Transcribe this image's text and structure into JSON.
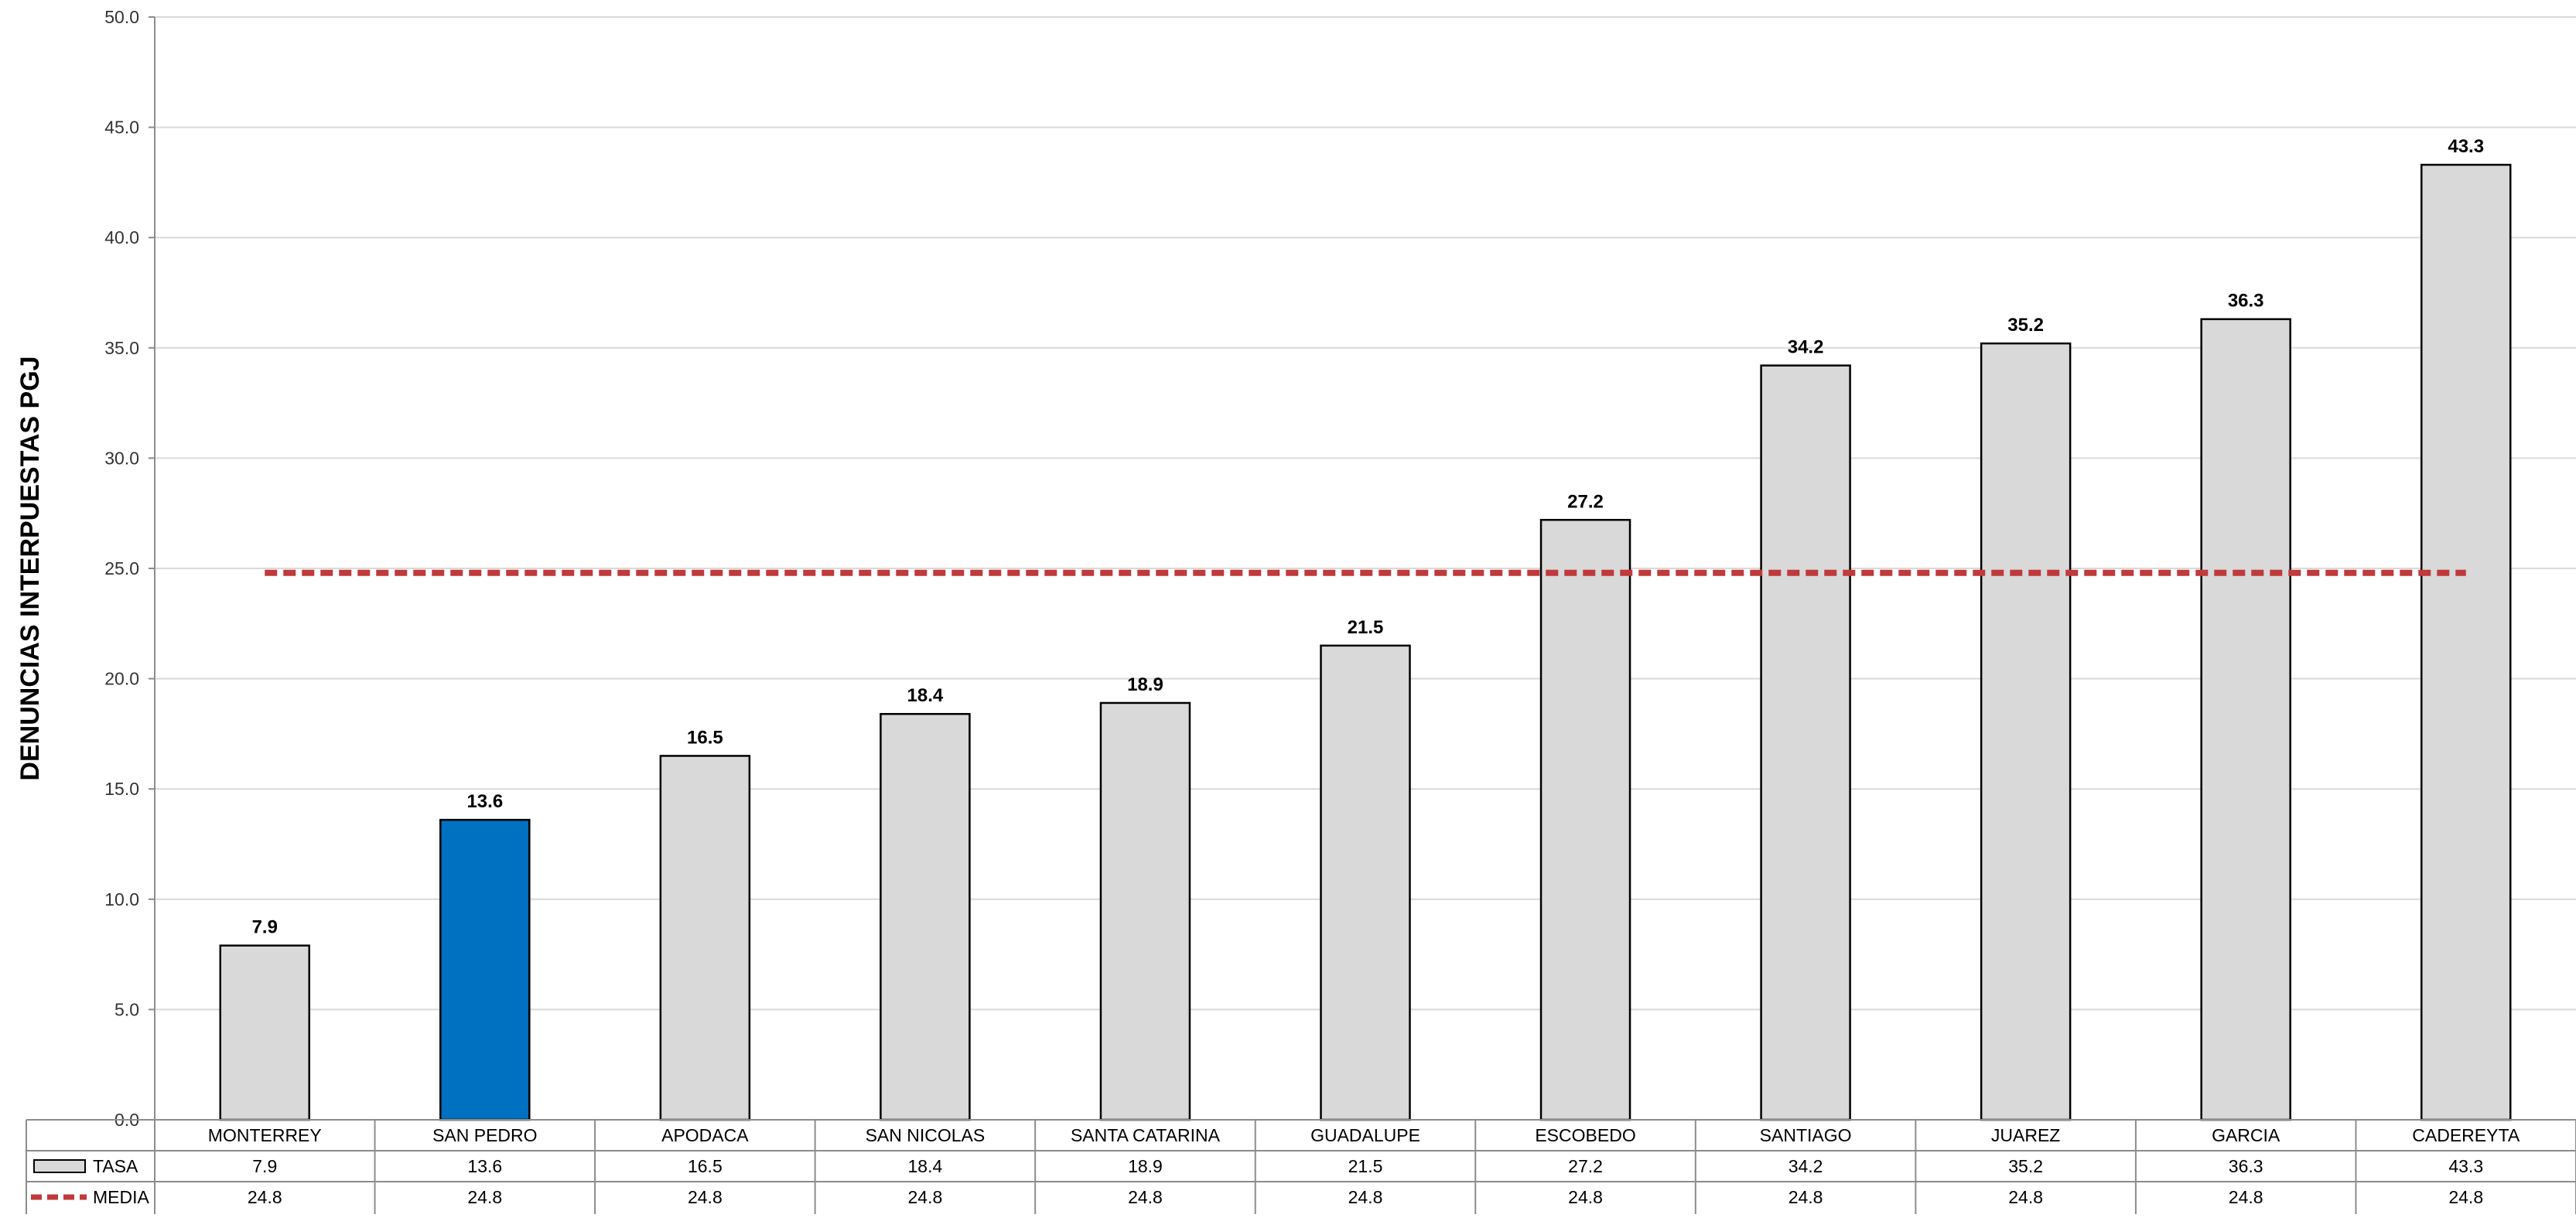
{
  "chart_data": {
    "type": "bar",
    "title": "",
    "xlabel": "",
    "ylabel": "DENUNCIAS INTERPUESTAS PGJ",
    "ylim": [
      0,
      50
    ],
    "ytick_step": 5,
    "ytick_labels": [
      "0.0",
      "5.0",
      "10.0",
      "15.0",
      "20.0",
      "25.0",
      "30.0",
      "35.0",
      "40.0",
      "45.0",
      "50.0"
    ],
    "grid": true,
    "data_table": true,
    "categories": [
      "MONTERREY",
      "SAN PEDRO",
      "APODACA",
      "SAN NICOLAS",
      "SANTA CATARINA",
      "GUADALUPE",
      "ESCOBEDO",
      "SANTIAGO",
      "JUAREZ",
      "GARCIA",
      "CADEREYTA"
    ],
    "series": [
      {
        "name": "TASA",
        "kind": "bar",
        "color": "#d9d9d9",
        "highlight_color": "#0070c0",
        "highlight_category": "SAN PEDRO",
        "values": [
          7.9,
          13.6,
          16.5,
          18.4,
          18.9,
          21.5,
          27.2,
          34.2,
          35.2,
          36.3,
          43.3
        ],
        "value_labels": [
          "7.9",
          "13.6",
          "16.5",
          "18.4",
          "18.9",
          "21.5",
          "27.2",
          "34.2",
          "35.2",
          "36.3",
          "43.3"
        ]
      },
      {
        "name": "MEDIA",
        "kind": "line",
        "style": "dashed",
        "color": "#c0393b",
        "values": [
          24.8,
          24.8,
          24.8,
          24.8,
          24.8,
          24.8,
          24.8,
          24.8,
          24.8,
          24.8,
          24.8
        ],
        "value_labels": [
          "24.8",
          "24.8",
          "24.8",
          "24.8",
          "24.8",
          "24.8",
          "24.8",
          "24.8",
          "24.8",
          "24.8",
          "24.8"
        ]
      }
    ]
  }
}
